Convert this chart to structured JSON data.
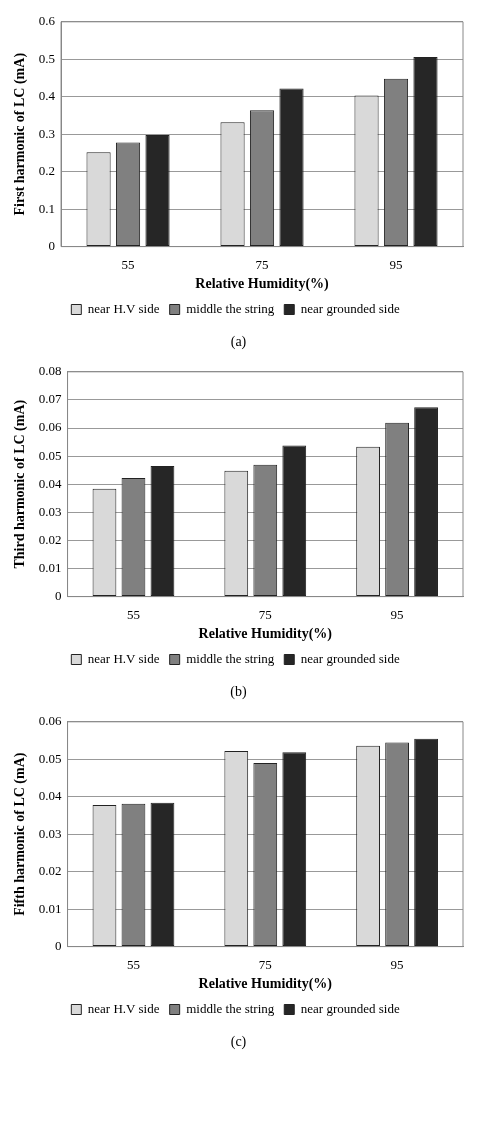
{
  "chart_data": [
    {
      "type": "bar",
      "categories": [
        "55",
        "75",
        "95"
      ],
      "xlabel": "Relative Humidity(%)",
      "ylabel": "First harmonic of LC (mA)",
      "ylim": [
        0,
        0.6
      ],
      "yticks": [
        0,
        0.1,
        0.2,
        0.3,
        0.4,
        0.5,
        0.6
      ],
      "grid": "y",
      "legend": "bottom",
      "annotations": [
        "(a)"
      ],
      "series": [
        {
          "name": "near H.V side",
          "color": "#d9d9d9",
          "values": [
            0.252,
            0.332,
            0.403
          ]
        },
        {
          "name": "middle the string",
          "color": "#808080",
          "values": [
            0.278,
            0.364,
            0.448
          ]
        },
        {
          "name": "near grounded side",
          "color": "#262626",
          "values": [
            0.298,
            0.422,
            0.506
          ]
        }
      ]
    },
    {
      "type": "bar",
      "categories": [
        "55",
        "75",
        "95"
      ],
      "xlabel": "Relative Humidity(%)",
      "ylabel": "Third harmonic of LC (mA)",
      "ylim": [
        0,
        0.08
      ],
      "yticks": [
        0,
        0.01,
        0.02,
        0.03,
        0.04,
        0.05,
        0.06,
        0.07,
        0.08
      ],
      "grid": "y",
      "legend": "bottom",
      "annotations": [
        "(b)"
      ],
      "series": [
        {
          "name": "near H.V side",
          "color": "#d9d9d9",
          "values": [
            0.0384,
            0.0448,
            0.0533
          ]
        },
        {
          "name": "middle the string",
          "color": "#808080",
          "values": [
            0.0422,
            0.0469,
            0.0619
          ]
        },
        {
          "name": "near grounded side",
          "color": "#262626",
          "values": [
            0.0465,
            0.0538,
            0.0674
          ]
        }
      ]
    },
    {
      "type": "bar",
      "categories": [
        "55",
        "75",
        "95"
      ],
      "xlabel": "Relative Humidity(%)",
      "ylabel": "Fifth harmonic of LC (mA)",
      "ylim": [
        0,
        0.06
      ],
      "yticks": [
        0,
        0.01,
        0.02,
        0.03,
        0.04,
        0.05,
        0.06
      ],
      "grid": "y",
      "legend": "bottom",
      "annotations": [
        "(c)"
      ],
      "series": [
        {
          "name": "near H.V side",
          "color": "#d9d9d9",
          "values": [
            0.0378,
            0.0522,
            0.0536
          ]
        },
        {
          "name": "middle the string",
          "color": "#808080",
          "values": [
            0.0381,
            0.049,
            0.0545
          ]
        },
        {
          "name": "near grounded side",
          "color": "#262626",
          "values": [
            0.0384,
            0.0519,
            0.0555
          ]
        }
      ]
    }
  ]
}
